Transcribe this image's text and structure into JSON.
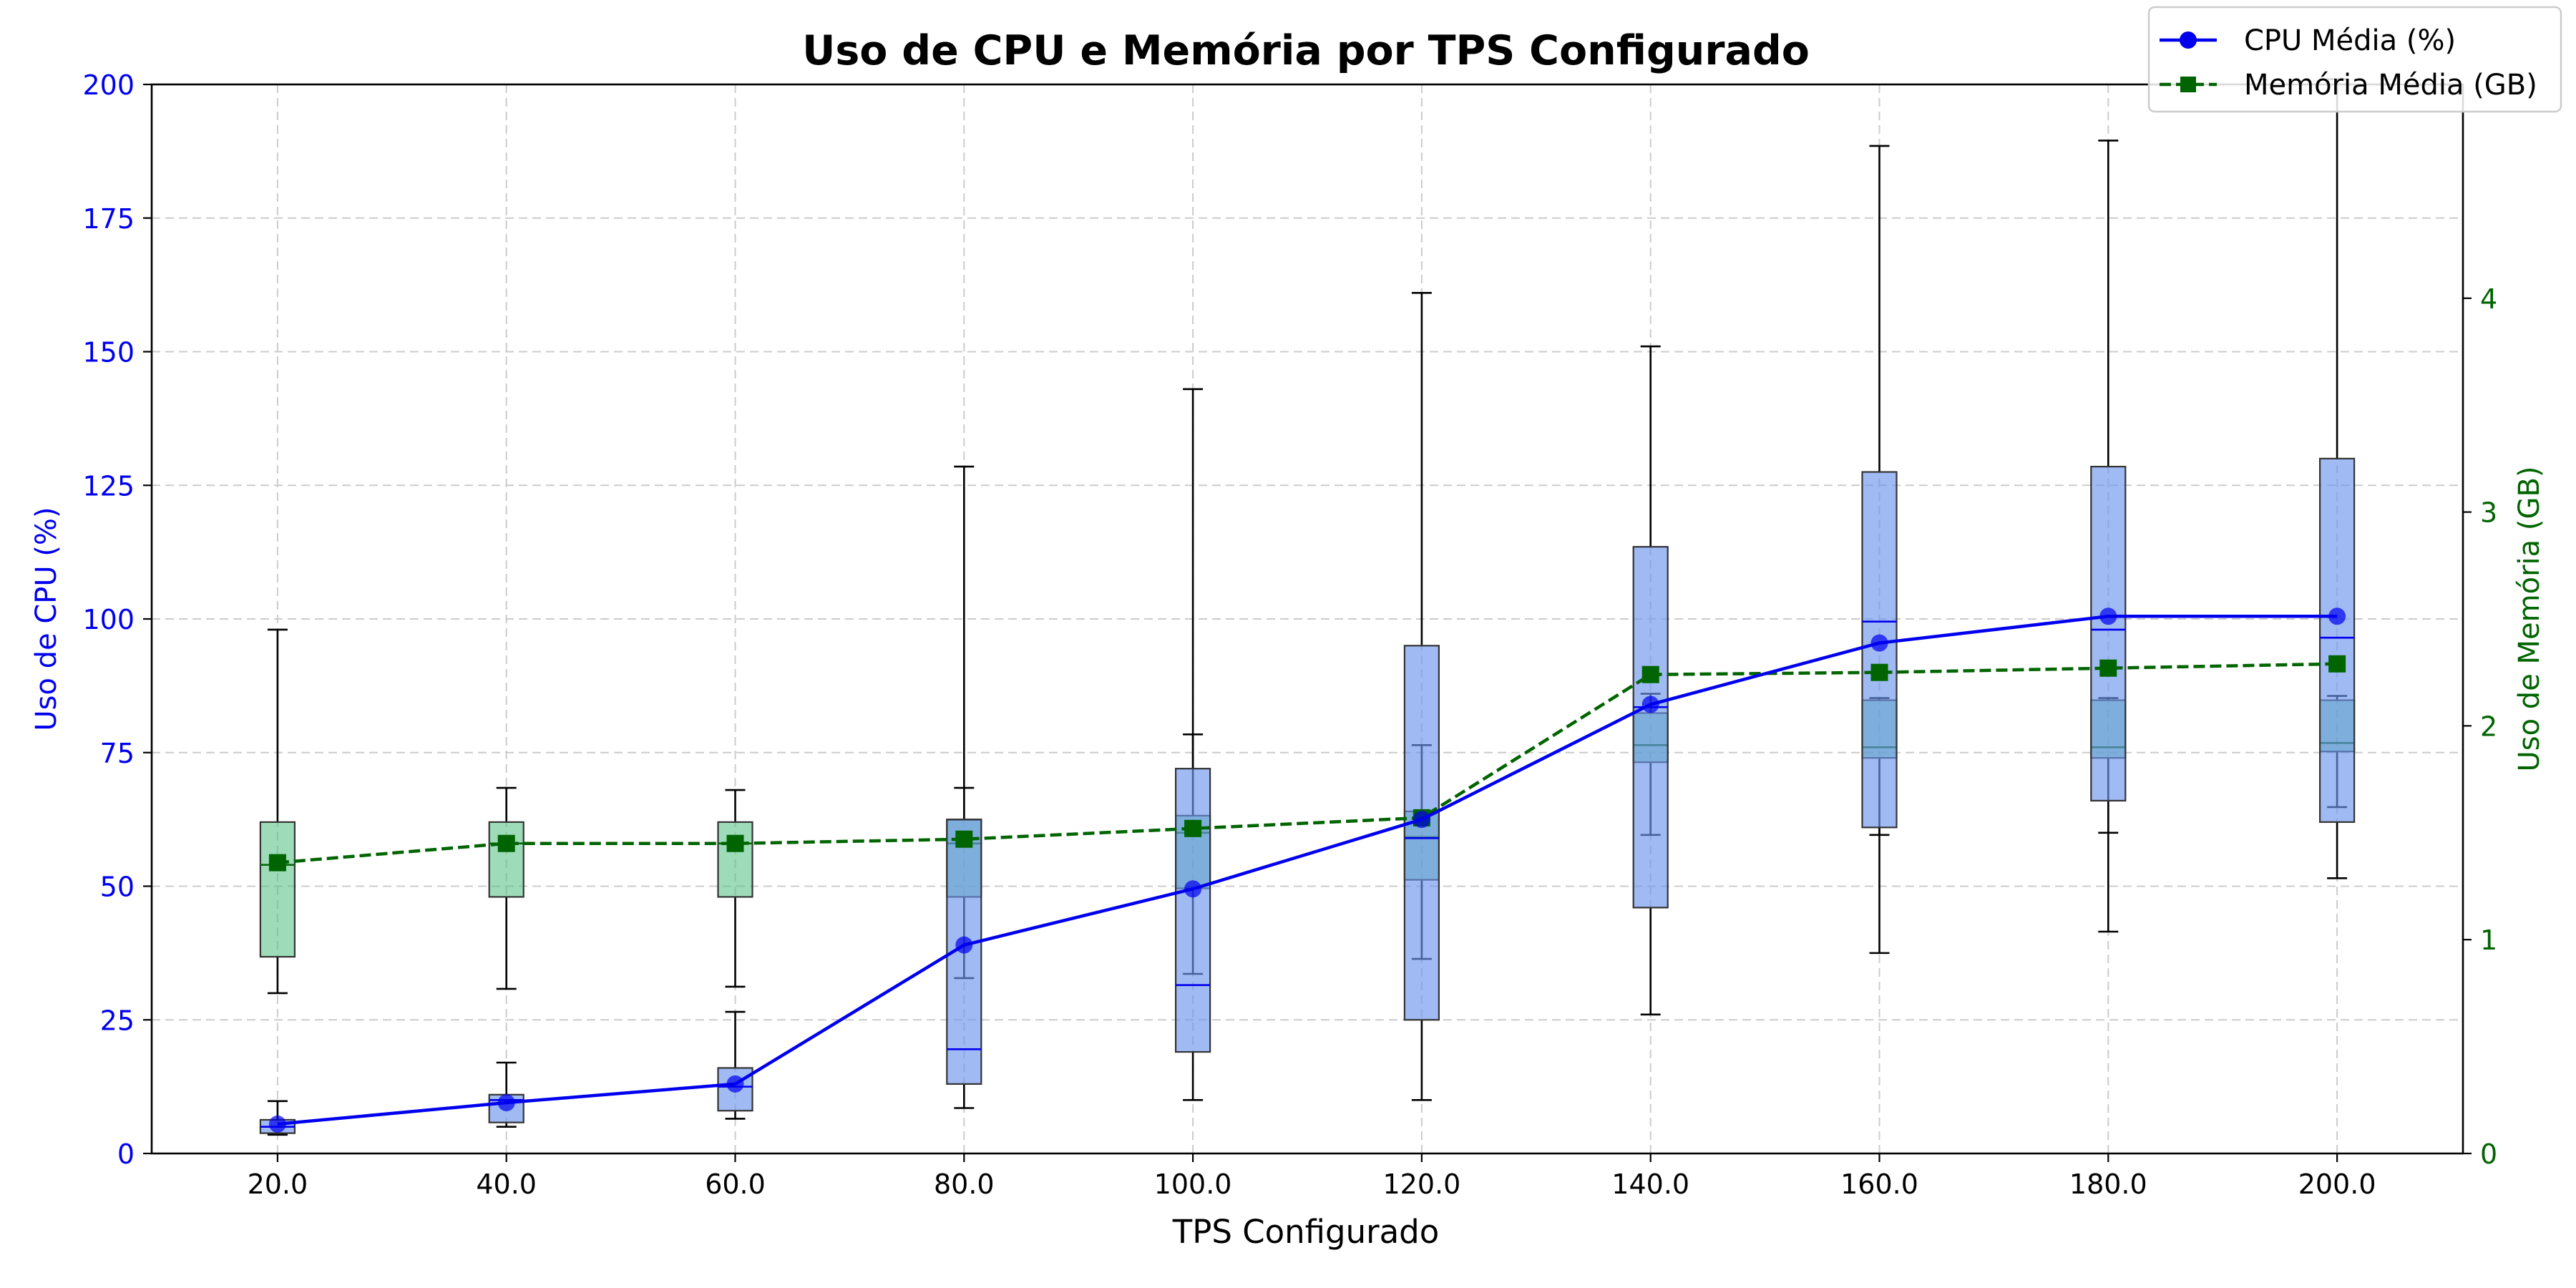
{
  "chart_data": {
    "type": "box",
    "title": "Uso de CPU e Memória por TPS Configurado",
    "xlabel": "TPS Configurado",
    "ylabel_left": "Uso de CPU (%)",
    "ylabel_right": "Uso de Memória (GB)",
    "categories": [
      "20.0",
      "40.0",
      "60.0",
      "80.0",
      "100.0",
      "120.0",
      "140.0",
      "160.0",
      "180.0",
      "200.0"
    ],
    "x_values": [
      20,
      40,
      60,
      80,
      100,
      120,
      140,
      160,
      180,
      200
    ],
    "xlim": [
      9,
      211
    ],
    "ylim_left": [
      0,
      200
    ],
    "ylim_right": [
      0,
      5
    ],
    "yticks_left": [
      "0",
      "25",
      "50",
      "75",
      "100",
      "125",
      "150",
      "175",
      "200"
    ],
    "yticks_right": [
      "0",
      "1",
      "2",
      "3",
      "4"
    ],
    "grid": true,
    "legend_position": "top-right",
    "colors": {
      "cpu": "#0000ee",
      "cpu_box_fill": "#6d95ee",
      "memory": "#006400",
      "memory_box_fill": "#4fbf7f",
      "whisker": "#000000",
      "grid": "#cccccc",
      "title": "#000000"
    },
    "series": [
      {
        "name": "CPU Média (%)",
        "axis": "left",
        "marker": "circle",
        "line_style": "solid",
        "mean": [
          5.5,
          9.5,
          13,
          39,
          49.5,
          62.5,
          84,
          95.5,
          100.5,
          100.5
        ],
        "boxes": [
          {
            "whislo": 3.5,
            "q1": 3.8,
            "med": 5,
            "q3": 6.3,
            "whishi": 9.8
          },
          {
            "whislo": 5,
            "q1": 5.8,
            "med": 10,
            "q3": 11,
            "whishi": 17
          },
          {
            "whislo": 6.5,
            "q1": 8,
            "med": 12.5,
            "q3": 16,
            "whishi": 26.5
          },
          {
            "whislo": 8.5,
            "q1": 13,
            "med": 19.5,
            "q3": 62.5,
            "whishi": 128.5
          },
          {
            "whislo": 10,
            "q1": 19,
            "med": 31.5,
            "q3": 72,
            "whishi": 143
          },
          {
            "whislo": 10,
            "q1": 25,
            "med": 59,
            "q3": 95,
            "whishi": 161
          },
          {
            "whislo": 26,
            "q1": 46,
            "med": 83.5,
            "q3": 113.5,
            "whishi": 151
          },
          {
            "whislo": 37.5,
            "q1": 61,
            "med": 99.5,
            "q3": 127.5,
            "whishi": 188.5
          },
          {
            "whislo": 41.5,
            "q1": 66,
            "med": 98,
            "q3": 128.5,
            "whishi": 189.5
          },
          {
            "whislo": 51.5,
            "q1": 62,
            "med": 96.5,
            "q3": 130,
            "whishi": 201
          }
        ]
      },
      {
        "name": "Memória Média (GB)",
        "axis": "right",
        "marker": "square",
        "line_style": "dashed",
        "mean": [
          1.36,
          1.45,
          1.45,
          1.47,
          1.52,
          1.57,
          2.24,
          2.25,
          2.27,
          2.29
        ],
        "boxes": [
          {
            "whislo": 0.75,
            "q1": 0.92,
            "med": 1.35,
            "q3": 1.55,
            "whishi": 2.45
          },
          {
            "whislo": 0.77,
            "q1": 1.2,
            "med": 1.45,
            "q3": 1.55,
            "whishi": 1.71
          },
          {
            "whislo": 0.78,
            "q1": 1.2,
            "med": 1.45,
            "q3": 1.55,
            "whishi": 1.7
          },
          {
            "whislo": 0.82,
            "q1": 1.2,
            "med": 1.45,
            "q3": 1.56,
            "whishi": 1.71
          },
          {
            "whislo": 0.84,
            "q1": 1.24,
            "med": 1.5,
            "q3": 1.58,
            "whishi": 1.96
          },
          {
            "whislo": 0.91,
            "q1": 1.28,
            "med": 1.48,
            "q3": 1.6,
            "whishi": 1.91
          },
          {
            "whislo": 1.49,
            "q1": 1.83,
            "med": 1.91,
            "q3": 2.06,
            "whishi": 2.15
          },
          {
            "whislo": 1.49,
            "q1": 1.85,
            "med": 1.9,
            "q3": 2.12,
            "whishi": 2.13
          },
          {
            "whislo": 1.5,
            "q1": 1.85,
            "med": 1.9,
            "q3": 2.12,
            "whishi": 2.13
          },
          {
            "whislo": 1.62,
            "q1": 1.88,
            "med": 1.92,
            "q3": 2.12,
            "whishi": 2.14
          }
        ]
      }
    ]
  }
}
